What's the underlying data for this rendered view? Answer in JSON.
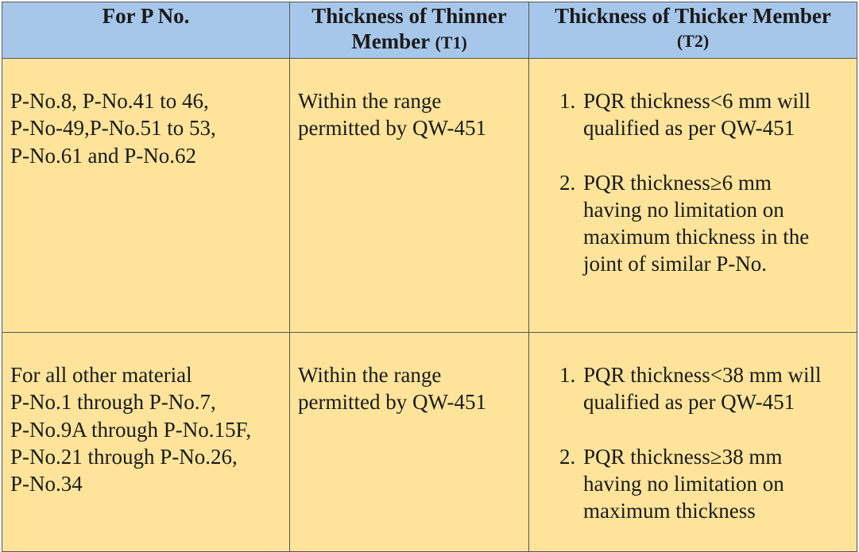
{
  "headers": {
    "col1": "For P No.",
    "col2_line1": "Thickness of Thinner",
    "col2_line2": "Member",
    "col2_suffix": "(T1)",
    "col3_line1": "Thickness of Thicker Member",
    "col3_line2": "(T2)"
  },
  "rows": [
    {
      "p_no": [
        "P-No.8, P-No.41 to 46,",
        "P-No-49,P-No.51 to 53,",
        "P-No.61 and P-No.62"
      ],
      "thinner": [
        "Within the range",
        "permitted by QW-451"
      ],
      "thicker": [
        {
          "num": "1.",
          "lines": [
            "PQR thickness<6 mm will",
            "qualified as per QW-451"
          ]
        },
        {
          "num": "2.",
          "lines": [
            "PQR thickness≥6 mm",
            "having no limitation on",
            "maximum thickness in the",
            "joint of similar P-No."
          ]
        }
      ]
    },
    {
      "p_no": [
        "For all other material",
        "P-No.1 through P-No.7,",
        "P-No.9A through P-No.15F,",
        "P-No.21 through P-No.26,",
        "P-No.34"
      ],
      "thinner": [
        "Within the range",
        "permitted by QW-451"
      ],
      "thicker": [
        {
          "num": "1.",
          "lines": [
            "PQR thickness<38 mm will",
            "qualified as per QW-451"
          ]
        },
        {
          "num": "2.",
          "lines": [
            "PQR thickness≥38 mm",
            "having no limitation on",
            "maximum thickness"
          ]
        }
      ]
    }
  ],
  "colors": {
    "header_bg": "#a7c7ea",
    "body_bg": "#fde49a",
    "border": "#555555"
  }
}
